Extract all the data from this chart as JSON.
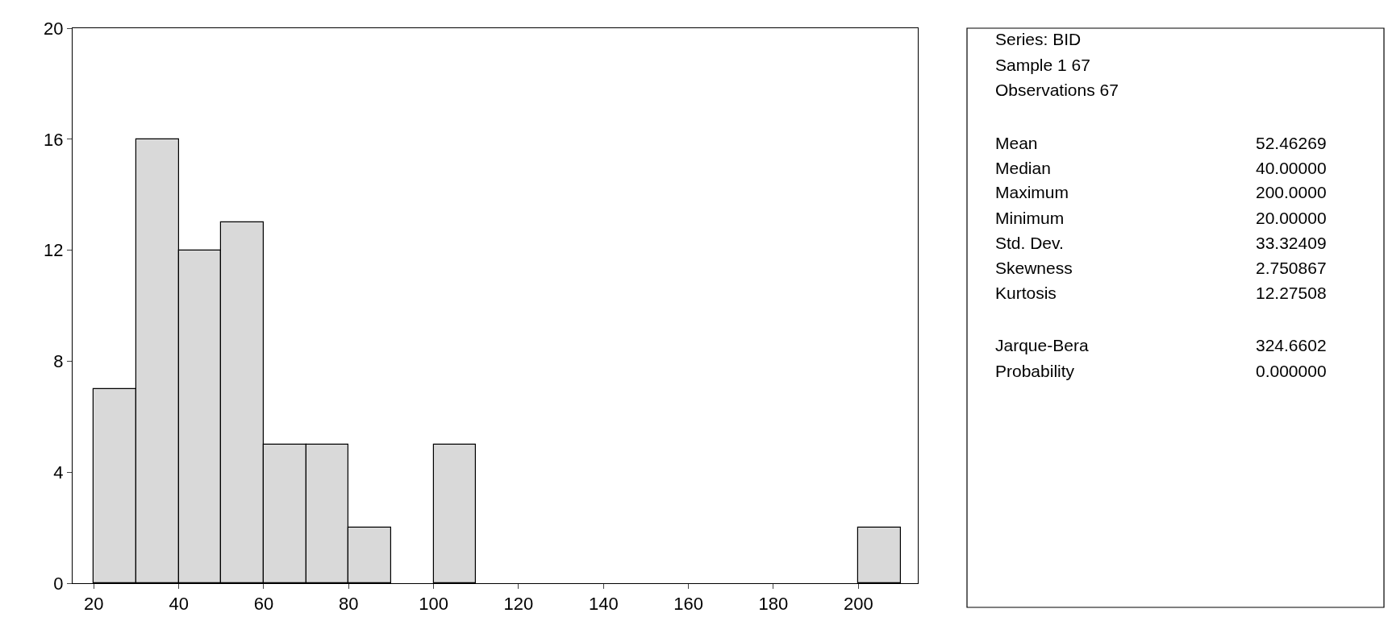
{
  "chart_data": [
    {
      "type": "histogram",
      "bins": [
        20,
        30,
        40,
        50,
        60,
        70,
        80,
        90,
        100,
        110,
        120,
        130,
        140,
        150,
        160,
        170,
        180,
        190,
        200,
        210
      ],
      "values": [
        7,
        16,
        12,
        13,
        5,
        5,
        2,
        0,
        5,
        0,
        0,
        0,
        0,
        0,
        0,
        0,
        0,
        0,
        2
      ],
      "color": "#d9d9d9",
      "xlim": [
        15,
        214
      ],
      "xticks": [
        20,
        40,
        60,
        80,
        100,
        120,
        140,
        160,
        180,
        200
      ],
      "ylim": [
        0,
        20
      ],
      "yticks": [
        0,
        4,
        8,
        12,
        16,
        20
      ]
    },
    {
      "type": "other",
      "annotations": [
        "Series: BID",
        "Sample 1 67",
        "Observations 67",
        "Mean",
        "52.46269",
        "Median",
        "40.00000",
        "Maximum",
        "200.0000",
        "Minimum",
        "20.00000",
        "Std. Dev.",
        "33.32409",
        "Skewness",
        "2.750867",
        "Kurtosis",
        "12.27508",
        "Jarque-Bera",
        "324.6602",
        "Probability",
        "0.000000"
      ]
    }
  ]
}
